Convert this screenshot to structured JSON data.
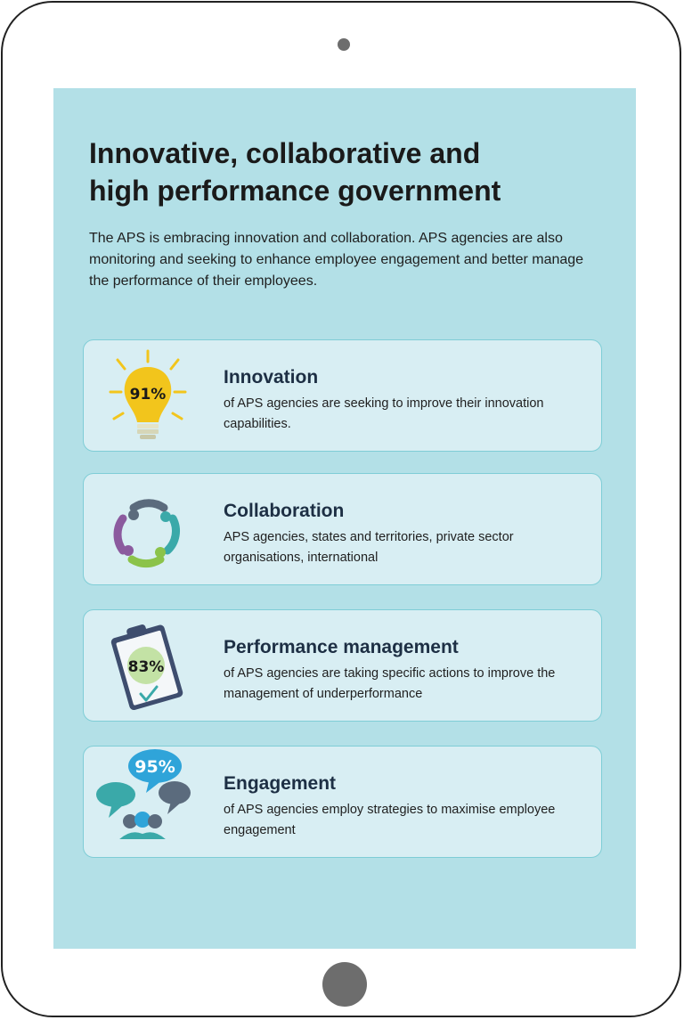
{
  "page": {
    "title": "Innovative, collaborative and\nhigh performance government",
    "intro": "The APS is embracing innovation and collaboration. APS agencies are also monitoring and seeking to enhance employee engagement and better manage the performance of their employees."
  },
  "cards": [
    {
      "icon": "lightbulb-icon",
      "stat": "91%",
      "title": "Innovation",
      "description": "of APS agencies are seeking to improve their innovation capabilities."
    },
    {
      "icon": "collaboration-circle-icon",
      "title": "Collaboration",
      "description": "APS agencies, states and territories, private sector organisations, international"
    },
    {
      "icon": "clipboard-icon",
      "stat": "83%",
      "title": "Performance management",
      "description": "of APS agencies are taking specific actions to improve the management of underperformance"
    },
    {
      "icon": "speech-bubbles-people-icon",
      "stat": "95%",
      "title": "Engagement",
      "description": "of APS agencies employ strategies to maximise employee engagement"
    }
  ],
  "colors": {
    "screen_background": "#b3e0e7",
    "card_background": "#d8eef3",
    "card_border": "#7fcdd6",
    "title_color": "#1d2f44",
    "lightbulb_yellow": "#f2c51c",
    "collab_purple": "#8b5a9e",
    "collab_teal": "#3aa9a9",
    "collab_green": "#8bc34a",
    "clipboard_navy": "#3e4d6e",
    "bubble_blue": "#2fa4d9"
  }
}
